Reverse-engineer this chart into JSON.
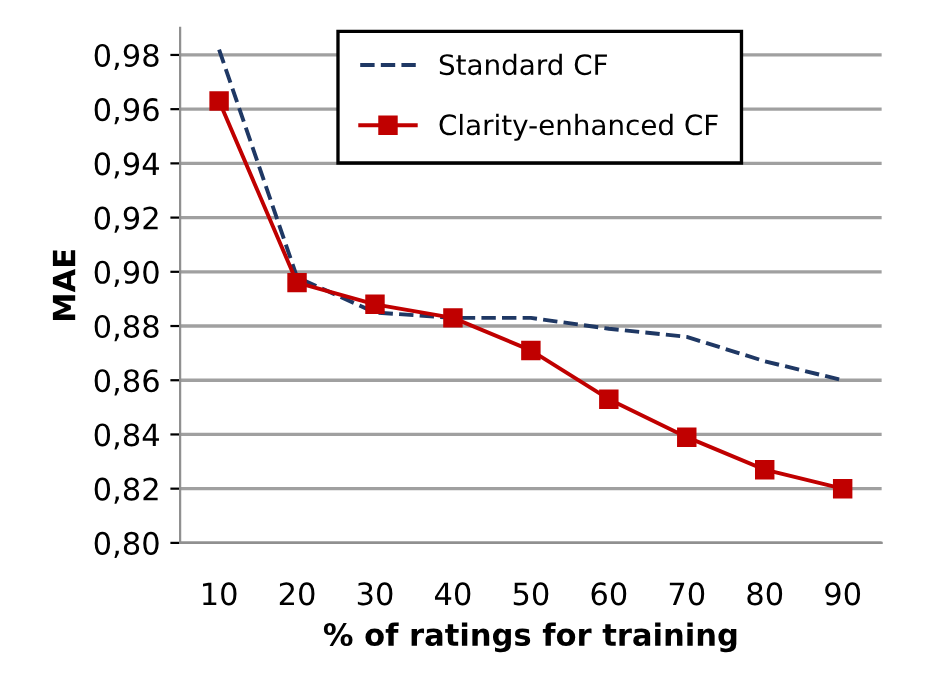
{
  "chart_data": {
    "type": "line",
    "xlabel": "% of ratings for training",
    "ylabel": "MAE",
    "categories": [
      "10",
      "20",
      "30",
      "40",
      "50",
      "60",
      "70",
      "80",
      "90"
    ],
    "series": [
      {
        "name": "Standard CF",
        "color": "#1f3864",
        "line_style": "dashed",
        "marker": "none",
        "values": [
          0.982,
          0.898,
          0.885,
          0.883,
          0.883,
          0.879,
          0.876,
          0.867,
          0.86
        ]
      },
      {
        "name": "Clarity-enhanced CF",
        "color": "#c00000",
        "line_style": "solid",
        "marker": "square",
        "values": [
          0.963,
          0.896,
          0.888,
          0.883,
          0.871,
          0.853,
          0.839,
          0.827,
          0.82
        ]
      }
    ],
    "ylim": [
      0.8,
      0.99
    ],
    "yticks": [
      {
        "value": 0.8,
        "label": "0,80"
      },
      {
        "value": 0.82,
        "label": "0,82"
      },
      {
        "value": 0.84,
        "label": "0,84"
      },
      {
        "value": 0.86,
        "label": "0,86"
      },
      {
        "value": 0.88,
        "label": "0,88"
      },
      {
        "value": 0.9,
        "label": "0,90"
      },
      {
        "value": 0.92,
        "label": "0,92"
      },
      {
        "value": 0.94,
        "label": "0,94"
      },
      {
        "value": 0.96,
        "label": "0,96"
      },
      {
        "value": 0.98,
        "label": "0,98"
      }
    ],
    "grid": "y",
    "legend": "top right"
  }
}
